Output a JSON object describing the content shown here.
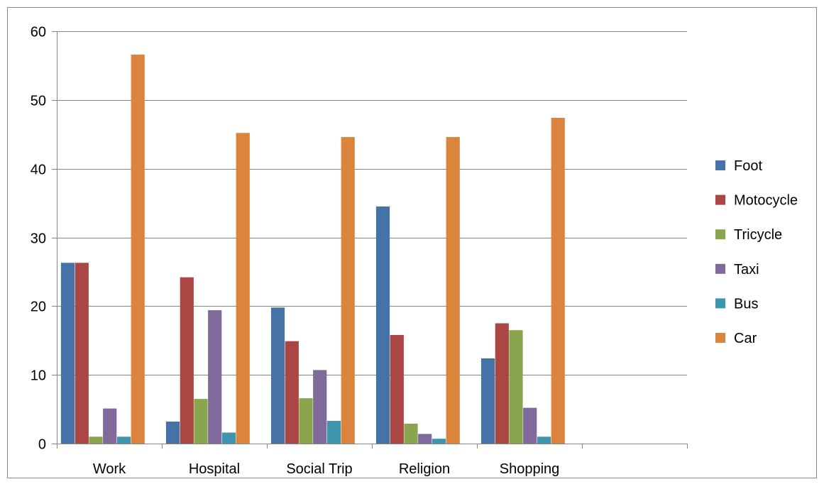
{
  "chart_data": {
    "type": "bar",
    "title": "",
    "xlabel": "",
    "ylabel": "",
    "categories": [
      "Work",
      "Hospital",
      "Social Trip",
      "Religion",
      "Shopping",
      ""
    ],
    "ylim": [
      0,
      60
    ],
    "yticks": [
      0,
      10,
      20,
      30,
      40,
      50,
      60
    ],
    "grid": true,
    "legend_position": "right",
    "series": [
      {
        "name": "Foot",
        "color": "#4572A7",
        "values": [
          26.3,
          3.2,
          19.8,
          34.5,
          12.4,
          null
        ]
      },
      {
        "name": "Motocycle",
        "color": "#AA4643",
        "values": [
          26.3,
          24.2,
          14.9,
          15.8,
          17.5,
          null
        ]
      },
      {
        "name": "Tricycle",
        "color": "#89A54E",
        "values": [
          1.0,
          6.5,
          6.6,
          2.9,
          16.5,
          null
        ]
      },
      {
        "name": "Taxi",
        "color": "#80699B",
        "values": [
          5.1,
          19.4,
          10.7,
          1.4,
          5.2,
          null
        ]
      },
      {
        "name": "Bus",
        "color": "#3D96AE",
        "values": [
          1.0,
          1.6,
          3.3,
          0.7,
          1.0,
          null
        ]
      },
      {
        "name": "Car",
        "color": "#DB843D",
        "values": [
          56.6,
          45.2,
          44.6,
          44.6,
          47.4,
          null
        ]
      }
    ]
  }
}
